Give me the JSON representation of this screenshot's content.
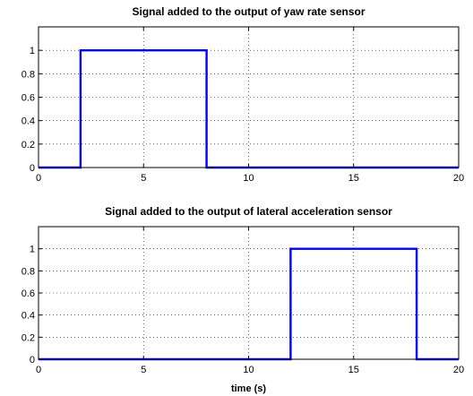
{
  "chart_data": [
    {
      "type": "line",
      "title": "Signal added to the output of yaw rate sensor",
      "xlabel": "",
      "ylabel": "",
      "xlim": [
        0,
        20
      ],
      "ylim": [
        0,
        1.2
      ],
      "xticks": [
        0,
        5,
        10,
        15,
        20
      ],
      "xtick_labels": [
        "0",
        "5",
        "10",
        "15",
        "20"
      ],
      "yticks": [
        0,
        0.2,
        0.4,
        0.6,
        0.8,
        1
      ],
      "ytick_labels": [
        "0",
        "0.2",
        "0.4",
        "0.6",
        "0.8",
        "1"
      ],
      "grid": true,
      "series": [
        {
          "color": "#0000ff",
          "x": [
            0,
            2,
            2,
            8,
            8,
            20
          ],
          "y": [
            0,
            0,
            1,
            1,
            0,
            0
          ]
        }
      ]
    },
    {
      "type": "line",
      "title": "Signal added to the output of lateral acceleration sensor",
      "xlabel": "time (s)",
      "ylabel": "",
      "xlim": [
        0,
        20
      ],
      "ylim": [
        0,
        1.2
      ],
      "xticks": [
        0,
        5,
        10,
        15,
        20
      ],
      "xtick_labels": [
        "0",
        "5",
        "10",
        "15",
        "20"
      ],
      "yticks": [
        0,
        0.2,
        0.4,
        0.6,
        0.8,
        1
      ],
      "ytick_labels": [
        "0",
        "0.2",
        "0.4",
        "0.6",
        "0.8",
        "1"
      ],
      "grid": true,
      "series": [
        {
          "color": "#0000ff",
          "x": [
            0,
            12,
            12,
            18,
            18,
            20
          ],
          "y": [
            0,
            0,
            1,
            1,
            0,
            0
          ]
        }
      ]
    }
  ]
}
